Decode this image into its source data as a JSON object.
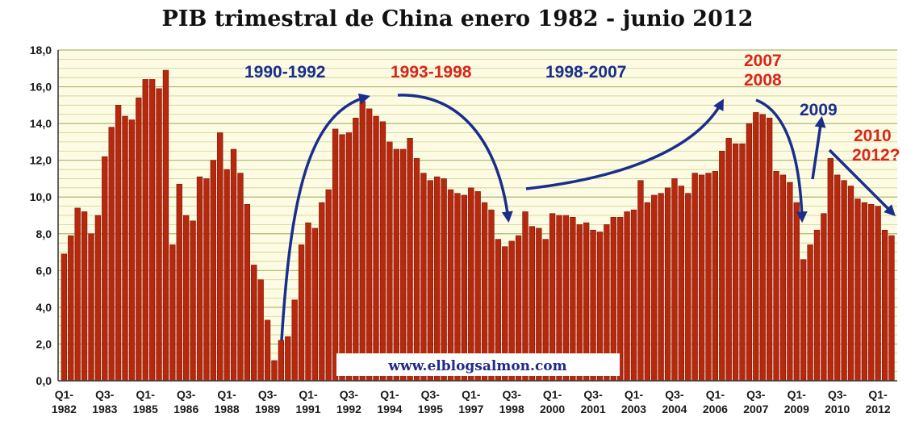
{
  "colors": {
    "bar": "#b7280e",
    "bar_edge": "#7a1608",
    "plot_bg": "#fdfbe4",
    "grid": "#c8d68a",
    "blue": "#1a2e8c",
    "red": "#d8261a"
  },
  "chart_data": {
    "type": "bar",
    "title": "PIB trimestral de China enero 1982 - junio 2012",
    "ylim": [
      0,
      18
    ],
    "yticks": [
      "0,0",
      "2,0",
      "4,0",
      "6,0",
      "8,0",
      "10,0",
      "12,0",
      "14,0",
      "16,0",
      "18,0"
    ],
    "grid": true,
    "xticks": [
      {
        "q": "Q1-",
        "y": "1982"
      },
      {
        "q": "Q3-",
        "y": "1983"
      },
      {
        "q": "Q1-",
        "y": "1985"
      },
      {
        "q": "Q3-",
        "y": "1986"
      },
      {
        "q": "Q1-",
        "y": "1988"
      },
      {
        "q": "Q3-",
        "y": "1989"
      },
      {
        "q": "Q1-",
        "y": "1991"
      },
      {
        "q": "Q3-",
        "y": "1992"
      },
      {
        "q": "Q1-",
        "y": "1994"
      },
      {
        "q": "Q3-",
        "y": "1995"
      },
      {
        "q": "Q1-",
        "y": "1997"
      },
      {
        "q": "Q3-",
        "y": "1998"
      },
      {
        "q": "Q1-",
        "y": "2000"
      },
      {
        "q": "Q3-",
        "y": "2001"
      },
      {
        "q": "Q1-",
        "y": "2003"
      },
      {
        "q": "Q3-",
        "y": "2004"
      },
      {
        "q": "Q1-",
        "y": "2006"
      },
      {
        "q": "Q3-",
        "y": "2007"
      },
      {
        "q": "Q1-",
        "y": "2009"
      },
      {
        "q": "Q3-",
        "y": "2010"
      },
      {
        "q": "Q1-",
        "y": "2012"
      }
    ],
    "values": [
      6.9,
      7.9,
      9.4,
      9.2,
      8.0,
      9.0,
      12.2,
      13.8,
      15.0,
      14.4,
      14.2,
      15.4,
      16.4,
      16.4,
      15.9,
      16.9,
      7.4,
      10.7,
      9.0,
      8.7,
      11.1,
      11.0,
      12.0,
      13.5,
      11.5,
      12.6,
      11.3,
      9.6,
      6.3,
      5.5,
      3.3,
      1.1,
      2.2,
      2.4,
      4.4,
      7.4,
      8.6,
      8.3,
      9.7,
      10.4,
      13.7,
      13.4,
      13.5,
      14.3,
      15.2,
      14.8,
      14.4,
      14.1,
      13.0,
      12.6,
      12.6,
      13.2,
      12.1,
      11.3,
      10.9,
      11.1,
      11.0,
      10.4,
      10.2,
      10.1,
      10.5,
      10.3,
      9.7,
      9.3,
      7.7,
      7.3,
      7.6,
      7.9,
      9.2,
      8.4,
      8.3,
      7.7,
      9.1,
      9.0,
      9.0,
      8.9,
      8.5,
      8.6,
      8.2,
      8.1,
      8.5,
      8.9,
      8.9,
      9.2,
      9.3,
      10.9,
      9.7,
      10.1,
      10.2,
      10.5,
      11.0,
      10.6,
      10.2,
      11.3,
      11.2,
      11.3,
      11.4,
      12.5,
      13.2,
      12.9,
      12.9,
      14.0,
      14.6,
      14.5,
      14.3,
      11.4,
      11.2,
      10.8,
      9.7,
      6.6,
      7.4,
      8.2,
      9.1,
      12.1,
      11.2,
      10.9,
      10.6,
      9.9,
      9.7,
      9.6,
      9.5,
      8.2,
      7.9
    ],
    "annotations": [
      {
        "text": "1990-1992",
        "color": "blue"
      },
      {
        "text": "1993-1998",
        "color": "red"
      },
      {
        "text": "1998-2007",
        "color": "blue"
      },
      {
        "text": "2007",
        "color": "red"
      },
      {
        "text": "2008",
        "color": "red"
      },
      {
        "text": "2009",
        "color": "blue"
      },
      {
        "text": "2010",
        "color": "red"
      },
      {
        "text": "2012?",
        "color": "red"
      }
    ],
    "watermark": "www.elblogsalmon.com"
  }
}
